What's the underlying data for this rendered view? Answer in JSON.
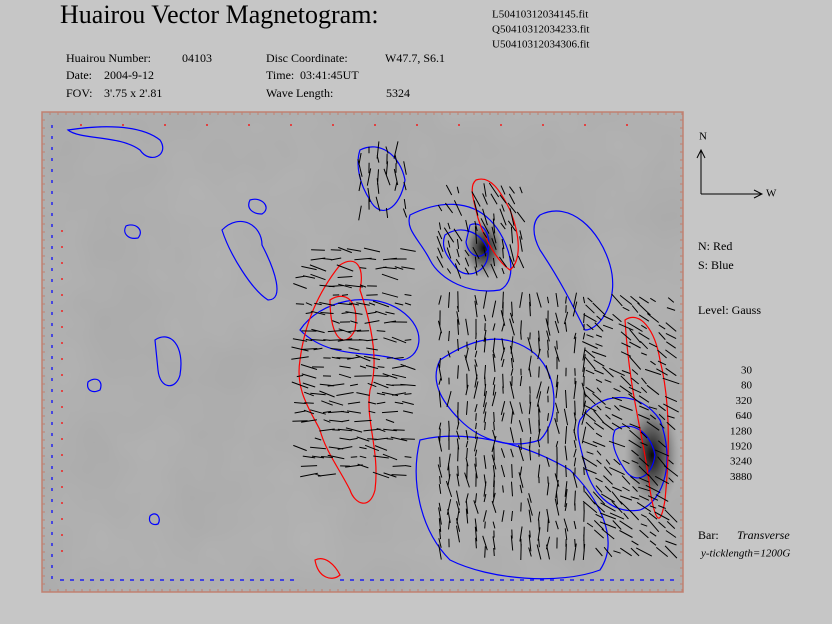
{
  "header": {
    "title": "Huairou Vector Magnetogram:",
    "files": [
      "L50410312034145.fit",
      "Q50410312034233.fit",
      "U50410312034306.fit"
    ]
  },
  "info": [
    {
      "label": "Huairou Number:",
      "value": "04103"
    },
    {
      "label": "Disc Coordinate:",
      "value": "W47.7, S6.1"
    },
    {
      "label": "Date:",
      "value": "2004-9-12"
    },
    {
      "label": "Time:",
      "value": "03:41:45UT"
    },
    {
      "label": "FOV:",
      "value": "3'.75 x 2'.81"
    },
    {
      "label": "Wave Length:",
      "value": "5324"
    }
  ],
  "compass": {
    "north": "N",
    "west": "W"
  },
  "polarity": {
    "north": "N: Red",
    "south": "S: Blue"
  },
  "level": {
    "title": "Level: Gauss",
    "values": [
      30,
      80,
      320,
      640,
      1280,
      1920,
      3240,
      3880
    ]
  },
  "bar": {
    "label": "Bar:",
    "kind": "Transverse",
    "ticklength": "y-ticklength=1200G"
  }
}
